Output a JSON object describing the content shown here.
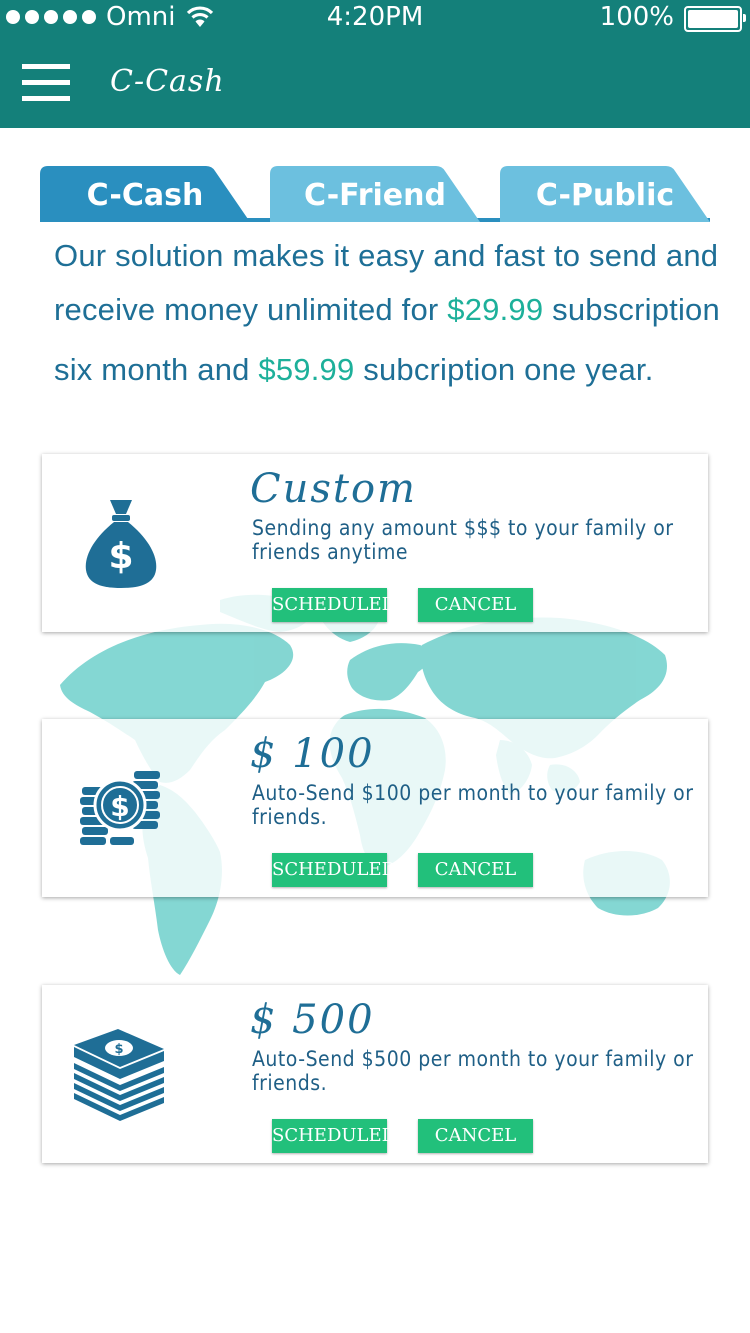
{
  "status": {
    "carrier": "Omni",
    "time": "4:20PM",
    "battery": "100%"
  },
  "nav": {
    "title": "C-Cash",
    "menu_icon": "hamburger-menu-icon"
  },
  "tabs": [
    {
      "label": "C-Cash",
      "color": "#2a8fbf"
    },
    {
      "label": "C-Friend",
      "color": "#6cc0df"
    },
    {
      "label": "C-Public",
      "color": "#6cc0df"
    }
  ],
  "intro": {
    "l1": "Our solution makes it easy and fast to send and",
    "l2a": "receive money unlimited for ",
    "price1": "$29.99",
    "l2b": " subscription",
    "l3a": "six month and ",
    "price2": "$59.99",
    "l3b": " subcription one year."
  },
  "cards": [
    {
      "title": "Custom",
      "desc": "Sending any amount $$$ to your family or friends anytime",
      "icon": "money-bag-icon",
      "icon_text": "$",
      "scheduled": "SCHEDULED",
      "cancel": "CANCEL"
    },
    {
      "title": "$ 100",
      "desc": "Auto-Send $100 per month to your family or friends.",
      "icon": "coin-stack-icon",
      "icon_text": "$",
      "scheduled": "SCHEDULED",
      "cancel": "CANCEL"
    },
    {
      "title": "$ 500",
      "desc": "Auto-Send $500 per month to your family or friends.",
      "icon": "cash-stack-icon",
      "icon_text": "$",
      "scheduled": "SCHEDULED",
      "cancel": "CANCEL"
    }
  ],
  "colors": {
    "header": "#14807a",
    "accent_text": "#1e6f96",
    "price": "#1db09a",
    "button": "#22c07b",
    "map": "#6fd0cb"
  }
}
